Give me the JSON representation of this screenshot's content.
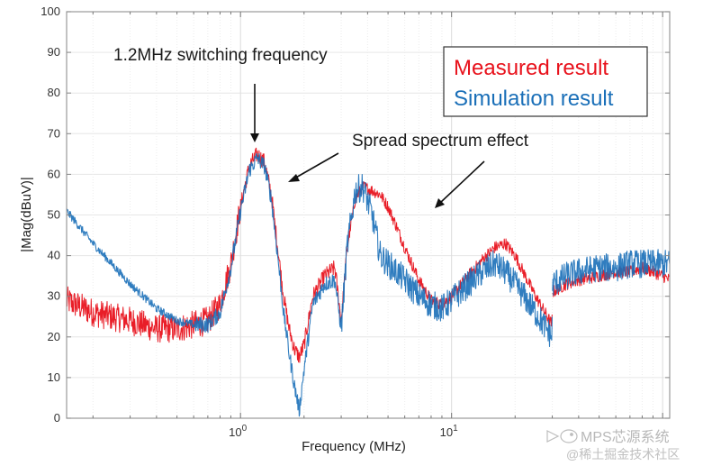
{
  "chart_data": {
    "type": "line",
    "title": "",
    "xlabel": "Frequency (MHz)",
    "ylabel": "|Mag(dBuV)|",
    "xscale": "log",
    "xlim": [
      0.15,
      108
    ],
    "ylim": [
      0,
      100
    ],
    "grid": true,
    "x_tick_labels": [
      {
        "value": 1,
        "base": "10",
        "exp": "0"
      },
      {
        "value": 10,
        "base": "10",
        "exp": "1"
      }
    ],
    "y_ticks": [
      0,
      10,
      20,
      30,
      40,
      50,
      60,
      70,
      80,
      90,
      100
    ],
    "legend": {
      "placement": "top-right",
      "entries": [
        {
          "name": "Measured result",
          "color": "#e8121c"
        },
        {
          "name": "Simulation result",
          "color": "#1a6fb8"
        }
      ]
    },
    "series": [
      {
        "name": "Measured result",
        "color": "#e8121c",
        "x": [
          0.15,
          0.2,
          0.3,
          0.4,
          0.5,
          0.6,
          0.7,
          0.8,
          0.9,
          1.0,
          1.1,
          1.2,
          1.3,
          1.4,
          1.5,
          1.6,
          1.7,
          1.8,
          1.9,
          2.0,
          2.2,
          2.5,
          2.8,
          3.0,
          3.2,
          3.5,
          3.8,
          4.2,
          4.6,
          5.0,
          5.5,
          6.0,
          7.0,
          8.0,
          9.0,
          10,
          12,
          14,
          16,
          18,
          20,
          25,
          29.9,
          30.1,
          35,
          40,
          50,
          60,
          70,
          80,
          90,
          100,
          108
        ],
        "y": [
          29,
          26,
          24,
          22,
          22,
          23,
          24,
          28,
          38,
          52,
          62,
          65,
          63,
          55,
          42,
          30,
          22,
          17,
          15,
          18,
          30,
          35,
          37,
          24,
          42,
          54,
          57,
          56,
          55,
          52,
          47,
          42,
          34,
          29,
          28,
          30,
          35,
          39,
          42,
          43,
          40,
          30,
          23,
          31,
          33,
          34,
          35,
          36,
          36,
          37,
          36,
          35,
          34
        ]
      },
      {
        "name": "Simulation result",
        "color": "#1a6fb8",
        "x": [
          0.15,
          0.2,
          0.3,
          0.4,
          0.5,
          0.6,
          0.7,
          0.8,
          0.9,
          1.0,
          1.1,
          1.2,
          1.3,
          1.4,
          1.5,
          1.6,
          1.7,
          1.8,
          1.9,
          2.0,
          2.2,
          2.5,
          2.8,
          3.0,
          3.2,
          3.5,
          3.8,
          4.2,
          4.6,
          5.0,
          5.5,
          6.0,
          7.0,
          8.0,
          9.0,
          10,
          12,
          14,
          16,
          18,
          20,
          25,
          29.9,
          30.1,
          35,
          40,
          50,
          60,
          70,
          80,
          90,
          100,
          108
        ],
        "y": [
          51,
          43,
          33,
          27,
          24,
          23,
          23,
          26,
          37,
          51,
          61,
          64,
          62,
          54,
          40,
          26,
          16,
          8,
          2,
          12,
          28,
          33,
          34,
          22,
          42,
          56,
          57,
          50,
          40,
          38,
          36,
          34,
          30,
          28,
          27,
          29,
          33,
          36,
          38,
          36,
          33,
          26,
          20,
          33,
          35,
          36,
          37,
          37,
          38,
          38,
          38,
          38,
          38
        ]
      }
    ],
    "annotations": [
      {
        "text": "1.2MHz switching frequency",
        "points_to_x": 1.2,
        "points_to_y": 67
      },
      {
        "text": "Spread spectrum effect",
        "targets": [
          {
            "x": 1.6,
            "y": 58
          },
          {
            "x": 8.0,
            "y": 52
          }
        ]
      }
    ]
  },
  "watermark": {
    "line1": "MPS芯源系统",
    "line2": "@稀土掘金技术社区"
  }
}
